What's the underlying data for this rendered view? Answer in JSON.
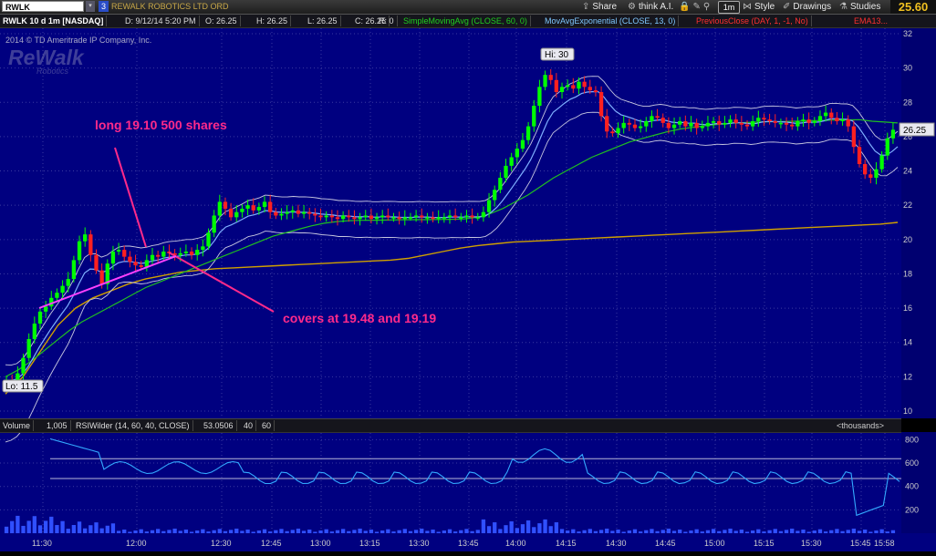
{
  "toolbar": {
    "symbol": "RWLK",
    "link_badge": "3",
    "company": "REWALK ROBOTICS LTD ORD",
    "share": "Share",
    "think_ai": "think A.I.",
    "timeframe": "1m",
    "style": "Style",
    "drawings": "Drawings",
    "studies": "Studies",
    "last_price": "25.60"
  },
  "study_bar": {
    "symbol_tf": "RWLK 10 d 1m [NASDAQ]",
    "date": "D: 9/12/14 5:20 PM",
    "open": "O: 26.25",
    "high": "H: 26.25",
    "low": "L: 26.25",
    "close": "C: 26.25",
    "range": "R: 0",
    "sma": "SimpleMovingAvg (CLOSE, 60, 0)",
    "ema": "MovAvgExponential (CLOSE, 13, 0)",
    "prev": "PreviousClose (DAY, 1, -1, No)",
    "ema13": "EMA13..."
  },
  "watermark": {
    "copyright": "2014 © TD Ameritrade IP Company, Inc."
  },
  "annotations": {
    "long": "long 19.10 500 shares",
    "covers": "covers at 19.48 and 19.19",
    "hi": "Hi: 30",
    "lo": "Lo: 11.5",
    "price_tag": "26.25"
  },
  "price_axis": [
    "32",
    "30",
    "28",
    "26",
    "24",
    "22",
    "20",
    "18",
    "16",
    "14",
    "12",
    "10"
  ],
  "volume_header": {
    "volume": "Volume",
    "volume_value": "1,005",
    "rsi": "RSIWilder (14, 60, 40, CLOSE)",
    "rsi_value": "53.0506",
    "ob": "40",
    "os": "60",
    "units": "<thousands>"
  },
  "volume_axis": [
    "800",
    "600",
    "400",
    "200"
  ],
  "time_axis": [
    "11:30",
    "12:00",
    "12:30",
    "12:45",
    "13:00",
    "13:15",
    "13:30",
    "13:45",
    "14:00",
    "14:15",
    "14:30",
    "14:45",
    "15:00",
    "15:15",
    "15:30",
    "15:45",
    "15:58"
  ],
  "colors": {
    "chart_bg": "#000080",
    "grid": "#3a3aa0",
    "up": "#00ff00",
    "down": "#ff2020",
    "sma": "#20c020",
    "ema": "#7fb0ff",
    "prev": "#d0a000",
    "annotation": "#ff2a8a",
    "trendline": "#ff40ff",
    "rsi": "#33aaff"
  },
  "chart_data": {
    "type": "candlestick",
    "y_range": [
      10,
      32
    ],
    "hi": 30,
    "lo": 11.5,
    "last": 26.25,
    "closes": [
      11.8,
      11.7,
      12.2,
      13.1,
      14.2,
      15.1,
      15.8,
      16.1,
      16.6,
      16.9,
      17.3,
      17.7,
      18.8,
      19.9,
      20.3,
      19.1,
      18.2,
      17.4,
      18.6,
      19.3,
      19.4,
      19.0,
      18.7,
      18.5,
      18.4,
      18.8,
      19.1,
      19.0,
      19.3,
      19.2,
      19.1,
      19.2,
      19.3,
      19.1,
      19.4,
      19.6,
      20.4,
      21.4,
      22.2,
      21.8,
      21.3,
      21.6,
      21.8,
      22.0,
      21.7,
      21.9,
      22.2,
      21.6,
      21.4,
      21.5,
      21.6,
      21.7,
      21.5,
      21.6,
      21.5,
      21.4,
      21.3,
      21.4,
      21.3,
      21.2,
      21.4,
      21.3,
      21.2,
      21.3,
      21.4,
      21.2,
      21.3,
      21.4,
      21.3,
      21.3,
      21.2,
      21.3,
      21.3,
      21.4,
      21.3,
      21.3,
      21.2,
      21.3,
      21.3,
      21.4,
      21.3,
      21.3,
      21.4,
      21.3,
      21.3,
      21.6,
      22.3,
      22.9,
      23.6,
      24.3,
      24.8,
      25.3,
      25.8,
      26.6,
      27.8,
      28.9,
      29.6,
      29.3,
      28.6,
      28.9,
      29.0,
      28.8,
      29.2,
      28.9,
      28.7,
      28.6,
      27.2,
      26.3,
      26.2,
      26.5,
      26.8,
      26.7,
      26.5,
      26.6,
      26.9,
      27.2,
      27.1,
      26.8,
      26.5,
      26.7,
      26.9,
      26.6,
      26.8,
      26.5,
      26.6,
      26.8,
      26.9,
      26.7,
      26.8,
      27.0,
      26.8,
      26.7,
      26.6,
      26.9,
      27.1,
      27.0,
      26.9,
      26.8,
      26.8,
      26.7,
      26.6,
      26.9,
      27.0,
      26.8,
      26.9,
      27.2,
      27.4,
      27.1,
      26.9,
      27.0,
      26.6,
      25.4,
      24.4,
      23.8,
      23.6,
      24.1,
      24.9,
      25.9,
      26.4
    ],
    "sma": [
      12.0,
      12.4,
      12.9,
      13.5,
      14.1,
      14.7,
      15.2,
      15.6,
      16.0,
      16.4,
      16.8,
      17.2,
      17.5,
      17.8,
      18.1,
      18.4,
      18.7,
      19.0,
      19.3,
      19.6,
      19.9,
      20.2,
      20.4,
      20.6,
      20.8,
      20.95,
      21.05,
      21.1,
      21.12,
      21.13,
      21.14,
      21.15,
      21.16,
      21.16,
      21.17,
      21.18,
      21.2,
      21.3,
      21.5,
      21.8,
      22.2,
      22.6,
      23.1,
      23.6,
      24.0,
      24.4,
      24.8,
      25.1,
      25.4,
      25.7,
      25.9,
      26.1,
      26.3,
      26.45,
      26.55,
      26.65,
      26.72,
      26.78,
      26.82,
      26.85,
      26.87,
      26.88,
      26.9,
      26.92,
      26.94,
      26.96,
      26.98,
      26.99,
      26.9,
      26.85,
      26.8
    ],
    "prev_close": [
      11.0,
      12.0,
      13.5,
      15.0,
      16.0,
      16.6,
      17.0,
      17.4,
      17.7,
      17.9,
      18.1,
      18.2,
      18.3,
      18.35,
      18.4,
      18.45,
      18.5,
      18.55,
      18.6,
      18.65,
      18.7,
      18.75,
      18.8,
      18.9,
      19.1,
      19.3,
      19.5,
      19.65,
      19.75,
      19.85,
      19.9,
      19.95,
      20.0,
      20.05,
      20.1,
      20.15,
      20.2,
      20.25,
      20.3,
      20.35,
      20.4,
      20.45,
      20.5,
      20.55,
      20.6,
      20.65,
      20.7,
      20.75,
      20.8,
      20.85,
      20.9,
      21.0
    ],
    "volume_axis_range": [
      0,
      850
    ],
    "rsi_levels": [
      40,
      60
    ]
  }
}
